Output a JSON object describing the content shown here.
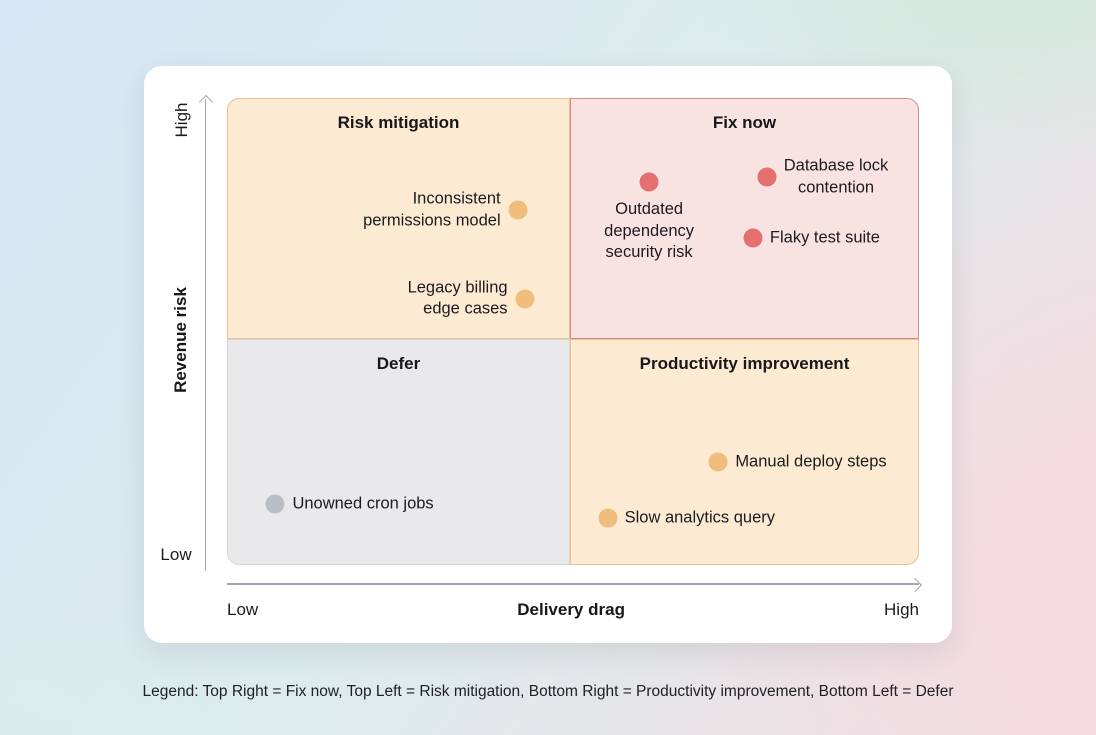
{
  "chart_data": {
    "type": "scatter",
    "variant": "quadrant-chart",
    "x_axis": {
      "label": "Delivery drag",
      "min_label": "Low",
      "max_label": "High"
    },
    "y_axis": {
      "label": "Revenue risk",
      "min_label": "Low",
      "max_label": "High"
    },
    "xlim": [
      0,
      1
    ],
    "ylim": [
      0,
      1
    ],
    "grid": false,
    "quadrants": [
      {
        "id": "top-left",
        "title": "Risk mitigation",
        "fill": "#fcebd2",
        "border": "#ecc18e"
      },
      {
        "id": "top-right",
        "title": "Fix now",
        "fill": "#f9e2e2",
        "border": "#cf8e8e"
      },
      {
        "id": "bottom-left",
        "title": "Defer",
        "fill": "#e9e9eb",
        "border": "#d4d5d9"
      },
      {
        "id": "bottom-right",
        "title": "Productivity improvement",
        "fill": "#fcebd2",
        "border": "#ecc18e"
      }
    ],
    "points": [
      {
        "label": "Inconsistent permissions model",
        "lines": [
          "Inconsistent",
          "permissions model"
        ],
        "x": 0.42,
        "y": 0.76,
        "color": "#f0bd7d",
        "label_side": "left"
      },
      {
        "label": "Legacy billing edge cases",
        "lines": [
          "Legacy billing",
          "edge cases"
        ],
        "x": 0.43,
        "y": 0.57,
        "color": "#f0bd7d",
        "label_side": "left"
      },
      {
        "label": "Outdated dependency security risk",
        "lines": [
          "Outdated",
          "dependency",
          "security risk"
        ],
        "x": 0.61,
        "y": 0.82,
        "color": "#e57070",
        "label_side": "below"
      },
      {
        "label": "Database lock contention",
        "lines": [
          "Database lock",
          "contention"
        ],
        "x": 0.78,
        "y": 0.83,
        "color": "#e57070",
        "label_side": "right"
      },
      {
        "label": "Flaky test suite",
        "lines": [
          "Flaky test suite"
        ],
        "x": 0.76,
        "y": 0.7,
        "color": "#e57070",
        "label_side": "right"
      },
      {
        "label": "Unowned cron jobs",
        "lines": [
          "Unowned cron jobs"
        ],
        "x": 0.07,
        "y": 0.13,
        "color": "#b9bfc7",
        "label_side": "right"
      },
      {
        "label": "Manual deploy steps",
        "lines": [
          "Manual deploy steps"
        ],
        "x": 0.71,
        "y": 0.22,
        "color": "#f0bd7d",
        "label_side": "right"
      },
      {
        "label": "Slow analytics query",
        "lines": [
          "Slow analytics query"
        ],
        "x": 0.55,
        "y": 0.1,
        "color": "#f0bd7d",
        "label_side": "right"
      }
    ],
    "legend": "Legend: Top Right = Fix now, Top Left = Risk mitigation, Bottom Right = Productivity improvement, Bottom Left = Defer",
    "legend_position": "bottom"
  }
}
